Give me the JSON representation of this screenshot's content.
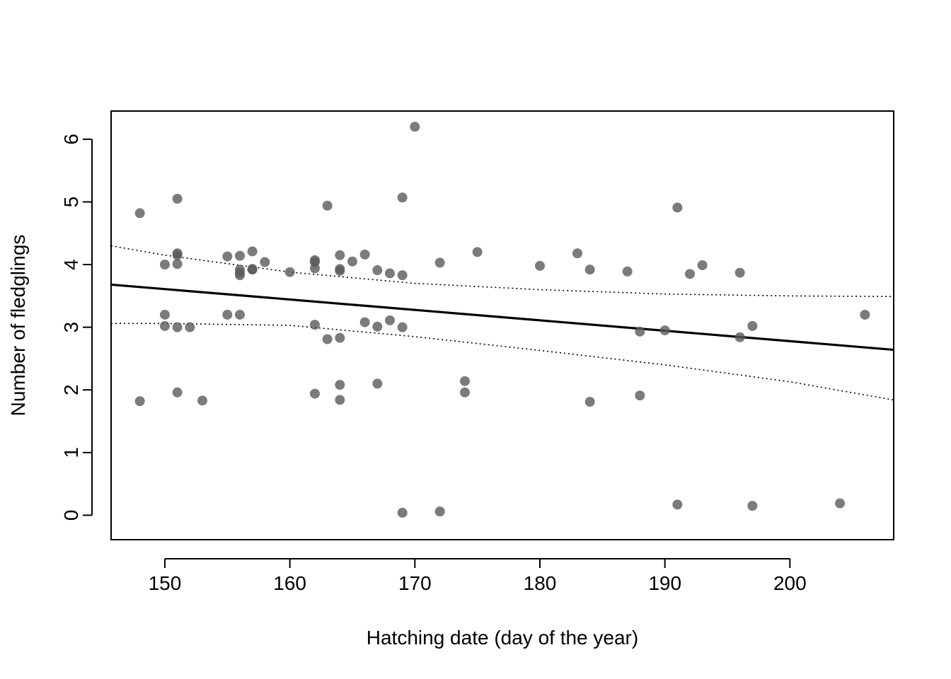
{
  "chart_data": {
    "type": "scatter",
    "title": "",
    "xlabel": "Hatching date (day of the year)",
    "ylabel": "Number of fledglings",
    "xlim": [
      145.7,
      208.3
    ],
    "ylim": [
      -0.39,
      6.45
    ],
    "x_ticks": [
      150,
      160,
      170,
      180,
      190,
      200
    ],
    "y_ticks": [
      0,
      1,
      2,
      3,
      4,
      5,
      6
    ],
    "grid": false,
    "legend": "none",
    "point_color": "#5a5a5a",
    "points": [
      {
        "x": 148,
        "y": 4.82
      },
      {
        "x": 148,
        "y": 1.82
      },
      {
        "x": 150,
        "y": 4.0
      },
      {
        "x": 150,
        "y": 3.2
      },
      {
        "x": 150,
        "y": 3.02
      },
      {
        "x": 151,
        "y": 5.05
      },
      {
        "x": 151,
        "y": 4.18
      },
      {
        "x": 151,
        "y": 4.15
      },
      {
        "x": 151,
        "y": 4.01
      },
      {
        "x": 151,
        "y": 3.0
      },
      {
        "x": 151,
        "y": 1.96
      },
      {
        "x": 152,
        "y": 3.0
      },
      {
        "x": 153,
        "y": 1.83
      },
      {
        "x": 155,
        "y": 4.13
      },
      {
        "x": 155,
        "y": 3.2
      },
      {
        "x": 156,
        "y": 4.14
      },
      {
        "x": 156,
        "y": 3.92
      },
      {
        "x": 156,
        "y": 3.87
      },
      {
        "x": 156,
        "y": 3.83
      },
      {
        "x": 156,
        "y": 3.2
      },
      {
        "x": 157,
        "y": 4.21
      },
      {
        "x": 157,
        "y": 3.93
      },
      {
        "x": 157,
        "y": 3.92
      },
      {
        "x": 158,
        "y": 4.04
      },
      {
        "x": 160,
        "y": 3.88
      },
      {
        "x": 162,
        "y": 4.07
      },
      {
        "x": 162,
        "y": 4.04
      },
      {
        "x": 162,
        "y": 3.94
      },
      {
        "x": 162,
        "y": 3.04
      },
      {
        "x": 162,
        "y": 1.94
      },
      {
        "x": 163,
        "y": 4.94
      },
      {
        "x": 163,
        "y": 2.81
      },
      {
        "x": 164,
        "y": 4.15
      },
      {
        "x": 164,
        "y": 3.93
      },
      {
        "x": 164,
        "y": 3.9
      },
      {
        "x": 164,
        "y": 2.83
      },
      {
        "x": 164,
        "y": 2.08
      },
      {
        "x": 164,
        "y": 1.84
      },
      {
        "x": 165,
        "y": 4.05
      },
      {
        "x": 166,
        "y": 4.16
      },
      {
        "x": 166,
        "y": 3.08
      },
      {
        "x": 167,
        "y": 3.91
      },
      {
        "x": 167,
        "y": 3.01
      },
      {
        "x": 167,
        "y": 2.1
      },
      {
        "x": 168,
        "y": 3.86
      },
      {
        "x": 168,
        "y": 3.11
      },
      {
        "x": 169,
        "y": 5.07
      },
      {
        "x": 169,
        "y": 3.83
      },
      {
        "x": 169,
        "y": 3.0
      },
      {
        "x": 169,
        "y": 0.04
      },
      {
        "x": 170,
        "y": 6.2
      },
      {
        "x": 172,
        "y": 4.03
      },
      {
        "x": 172,
        "y": 0.06
      },
      {
        "x": 174,
        "y": 2.14
      },
      {
        "x": 174,
        "y": 1.96
      },
      {
        "x": 175,
        "y": 4.2
      },
      {
        "x": 180,
        "y": 3.98
      },
      {
        "x": 183,
        "y": 4.18
      },
      {
        "x": 184,
        "y": 3.92
      },
      {
        "x": 184,
        "y": 1.81
      },
      {
        "x": 187,
        "y": 3.89
      },
      {
        "x": 188,
        "y": 2.93
      },
      {
        "x": 188,
        "y": 1.91
      },
      {
        "x": 190,
        "y": 2.95
      },
      {
        "x": 191,
        "y": 4.91
      },
      {
        "x": 191,
        "y": 0.17
      },
      {
        "x": 192,
        "y": 3.85
      },
      {
        "x": 193,
        "y": 3.99
      },
      {
        "x": 196,
        "y": 3.87
      },
      {
        "x": 196,
        "y": 2.84
      },
      {
        "x": 197,
        "y": 3.02
      },
      {
        "x": 197,
        "y": 0.15
      },
      {
        "x": 204,
        "y": 0.19
      },
      {
        "x": 206,
        "y": 3.2
      }
    ],
    "fit_line": {
      "x": [
        145.7,
        208.3
      ],
      "y": [
        3.68,
        2.64
      ]
    },
    "confidence_band": {
      "upper": {
        "x": [
          145.7,
          150,
          160,
          170,
          180,
          190,
          200,
          208.3
        ],
        "y": [
          4.3,
          4.15,
          3.88,
          3.7,
          3.6,
          3.53,
          3.5,
          3.49
        ]
      },
      "lower": {
        "x": [
          145.7,
          150,
          160,
          170,
          180,
          190,
          200,
          208.3
        ],
        "y": [
          3.06,
          3.06,
          3.03,
          2.85,
          2.63,
          2.4,
          2.13,
          1.84
        ]
      }
    }
  }
}
